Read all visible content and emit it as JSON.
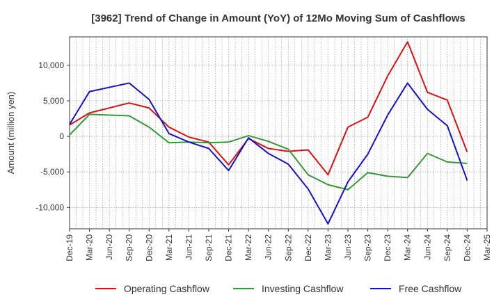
{
  "chart_data": {
    "type": "line",
    "title": "[3962]  Trend of Change in Amount (YoY) of 12Mo Moving Sum of Cashflows",
    "xlabel": "",
    "ylabel": "Amount (million yen)",
    "ylim": [
      -13000,
      14000
    ],
    "yticks": [
      -10000,
      -5000,
      0,
      5000,
      10000
    ],
    "ytick_labels": [
      "-10,000",
      "-5,000",
      "0",
      "5,000",
      "10,000"
    ],
    "grid": true,
    "legend_position": "bottom",
    "categories": [
      "Dec-19",
      "Mar-20",
      "Jun-20",
      "Sep-20",
      "Dec-20",
      "Mar-21",
      "Jun-21",
      "Sep-21",
      "Dec-21",
      "Mar-22",
      "Jun-22",
      "Sep-22",
      "Dec-22",
      "Mar-23",
      "Jun-23",
      "Sep-23",
      "Dec-23",
      "Mar-24",
      "Jun-24",
      "Sep-24",
      "Dec-24",
      "Mar-25"
    ],
    "series": [
      {
        "name": "Operating Cashflow",
        "color": "#dd1111",
        "values": [
          1600,
          3300,
          4000,
          4700,
          4000,
          1300,
          -100,
          -800,
          -4000,
          -300,
          -1700,
          -2100,
          -1900,
          -5400,
          1300,
          2700,
          8500,
          13300,
          6200,
          5100,
          -2200,
          null
        ]
      },
      {
        "name": "Investing Cashflow",
        "color": "#339933",
        "values": [
          200,
          3100,
          3000,
          2900,
          1300,
          -900,
          -800,
          -900,
          -800,
          100,
          -700,
          -1800,
          -5400,
          -6800,
          -7500,
          -5100,
          -5600,
          -5800,
          -2400,
          -3600,
          -3800,
          null
        ]
      },
      {
        "name": "Free Cashflow",
        "color": "#1111cc",
        "values": [
          1700,
          6300,
          6900,
          7500,
          5200,
          400,
          -800,
          -1700,
          -4800,
          -200,
          -2400,
          -3900,
          -7400,
          -12300,
          -6400,
          -2500,
          3000,
          7500,
          3800,
          1500,
          -6200,
          null
        ]
      }
    ]
  }
}
